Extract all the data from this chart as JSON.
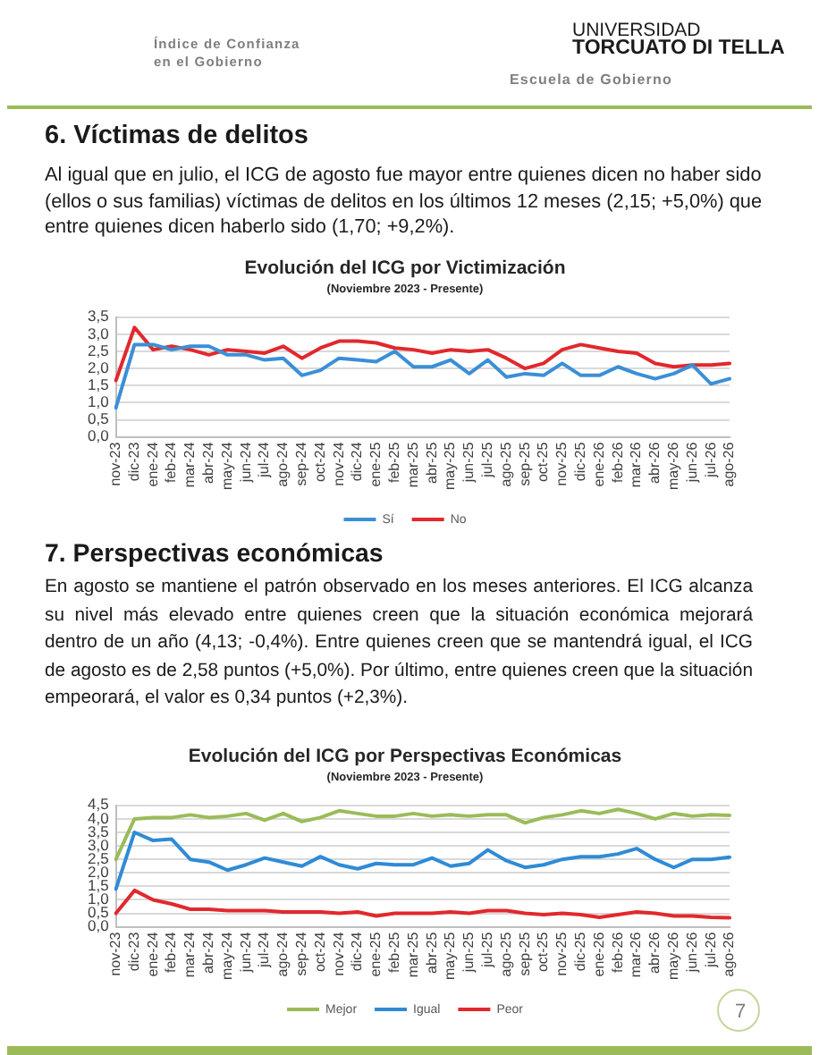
{
  "chart_data": [
    {
      "type": "line",
      "title": "Evolución del ICG por Victimización",
      "subtitle": "(Noviembre 2023 - Presente)",
      "annotations": [
        "Índice de Confianza en el Gobierno",
        "UNIVERSIDAD",
        "TORCUATO DI TELLA",
        "Escuela de Gobierno",
        "6. Víctimas de delitos",
        "Al igual que en julio, el ICG de agosto fue mayor entre quienes dicen no haber sido (ellos o sus familias) víctimas de delitos en los últimos 12 meses (2,15; +5,0%) que entre quienes dicen haberlo sido (1,70; +9,2%)."
      ],
      "categories": [
        "nov-23",
        "dic-23",
        "ene-24",
        "feb-24",
        "mar-24",
        "abr-24",
        "may-24",
        "jun-24",
        "jul-24",
        "ago-24",
        "sep-24",
        "oct-24",
        "nov-24",
        "dic-24",
        "ene-25",
        "feb-25",
        "mar-25",
        "abr-25",
        "may-25",
        "jun-25",
        "jul-25",
        "ago-25",
        "sep-25",
        "oct-25",
        "nov-25",
        "dic-25",
        "ene-26",
        "feb-26",
        "mar-26",
        "abr-26",
        "may-26",
        "jun-26",
        "jul-26",
        "ago-26"
      ],
      "series": [
        {
          "name": "Sí",
          "color": "#3b8fd6",
          "values": [
            0.85,
            2.7,
            2.7,
            2.55,
            2.65,
            2.65,
            2.4,
            2.4,
            2.25,
            2.3,
            1.8,
            1.95,
            2.3,
            2.25,
            2.2,
            2.5,
            2.05,
            2.05,
            2.25,
            1.85,
            2.25,
            1.75,
            1.85,
            1.8,
            2.15,
            1.8,
            1.8,
            2.05,
            1.85,
            1.7,
            1.85,
            2.1,
            1.55,
            1.7
          ]
        },
        {
          "name": "No",
          "color": "#e2282d",
          "values": [
            1.65,
            3.2,
            2.55,
            2.65,
            2.55,
            2.4,
            2.55,
            2.5,
            2.45,
            2.65,
            2.3,
            2.6,
            2.8,
            2.8,
            2.75,
            2.6,
            2.55,
            2.45,
            2.55,
            2.5,
            2.55,
            2.3,
            2.0,
            2.15,
            2.55,
            2.7,
            2.6,
            2.5,
            2.45,
            2.15,
            2.05,
            2.1,
            2.1,
            2.15
          ]
        }
      ],
      "ylim": [
        0,
        3.5
      ],
      "yticks": [
        {
          "value": 0,
          "label": "0,0"
        },
        {
          "value": 0.5,
          "label": "0,5"
        },
        {
          "value": 1,
          "label": "1,0"
        },
        {
          "value": 1.5,
          "label": "1,5"
        },
        {
          "value": 2,
          "label": "2,0"
        },
        {
          "value": 2.5,
          "label": "2,5"
        },
        {
          "value": 3,
          "label": "3,0"
        },
        {
          "value": 3.5,
          "label": "3,5"
        }
      ],
      "grid": "y",
      "legend": "bottom",
      "marker": "none",
      "line_style": "solid"
    },
    {
      "type": "line",
      "title": "Evolución del ICG por Perspectivas Económicas",
      "subtitle": "(Noviembre 2023 - Presente)",
      "annotations": [
        "7. Perspectivas económicas",
        "En agosto se mantiene el patrón observado en los meses anteriores. El ICG alcanza su nivel más elevado entre quienes creen que la situación económica mejorará dentro de un año (4,13; -0,4%). Entre quienes creen que se mantendrá igual, el ICG de agosto es de 2,58 puntos (+5,0%). Por último, entre quienes creen que la situación empeorará, el valor es 0,34 puntos (+2,3%).",
        "7"
      ],
      "categories": [
        "nov-23",
        "dic-23",
        "ene-24",
        "feb-24",
        "mar-24",
        "abr-24",
        "may-24",
        "jun-24",
        "jul-24",
        "ago-24",
        "sep-24",
        "oct-24",
        "nov-24",
        "dic-24",
        "ene-25",
        "feb-25",
        "mar-25",
        "abr-25",
        "may-25",
        "jun-25",
        "jul-25",
        "ago-25",
        "sep-25",
        "oct-25",
        "nov-25",
        "dic-25",
        "ene-26",
        "feb-26",
        "mar-26",
        "abr-26",
        "may-26",
        "jun-26",
        "jul-26",
        "ago-26"
      ],
      "series": [
        {
          "name": "Mejor",
          "color": "#9bbb59",
          "values": [
            2.5,
            4.0,
            4.05,
            4.05,
            4.15,
            4.05,
            4.1,
            4.2,
            3.95,
            4.2,
            3.9,
            4.05,
            4.3,
            4.2,
            4.1,
            4.1,
            4.2,
            4.1,
            4.15,
            4.1,
            4.15,
            4.15,
            3.85,
            4.05,
            4.15,
            4.3,
            4.2,
            4.35,
            4.2,
            4.0,
            4.2,
            4.1,
            4.15,
            4.13
          ]
        },
        {
          "name": "Igual",
          "color": "#2f8bd6",
          "values": [
            1.4,
            3.5,
            3.2,
            3.25,
            2.5,
            2.4,
            2.1,
            2.3,
            2.55,
            2.4,
            2.25,
            2.6,
            2.3,
            2.15,
            2.35,
            2.3,
            2.3,
            2.55,
            2.25,
            2.35,
            2.85,
            2.45,
            2.2,
            2.3,
            2.5,
            2.6,
            2.6,
            2.7,
            2.9,
            2.5,
            2.2,
            2.5,
            2.5,
            2.58
          ]
        },
        {
          "name": "Peor",
          "color": "#e2282d",
          "values": [
            0.5,
            1.35,
            1.0,
            0.85,
            0.65,
            0.65,
            0.6,
            0.6,
            0.6,
            0.55,
            0.55,
            0.55,
            0.5,
            0.55,
            0.4,
            0.5,
            0.5,
            0.5,
            0.55,
            0.5,
            0.6,
            0.6,
            0.5,
            0.45,
            0.5,
            0.45,
            0.35,
            0.45,
            0.55,
            0.5,
            0.4,
            0.4,
            0.35,
            0.34
          ]
        }
      ],
      "ylim": [
        0,
        4.5
      ],
      "yticks": [
        {
          "value": 0,
          "label": "0,0"
        },
        {
          "value": 0.5,
          "label": "0,5"
        },
        {
          "value": 1,
          "label": "1,0"
        },
        {
          "value": 1.5,
          "label": "1,5"
        },
        {
          "value": 2,
          "label": "2,0"
        },
        {
          "value": 2.5,
          "label": "2,5"
        },
        {
          "value": 3,
          "label": "3,0"
        },
        {
          "value": 3.5,
          "label": "3,5"
        },
        {
          "value": 4,
          "label": "4,0"
        },
        {
          "value": 4.5,
          "label": "4,5"
        }
      ],
      "grid": "y",
      "legend": "bottom",
      "marker": "none",
      "line_style": "solid"
    }
  ]
}
